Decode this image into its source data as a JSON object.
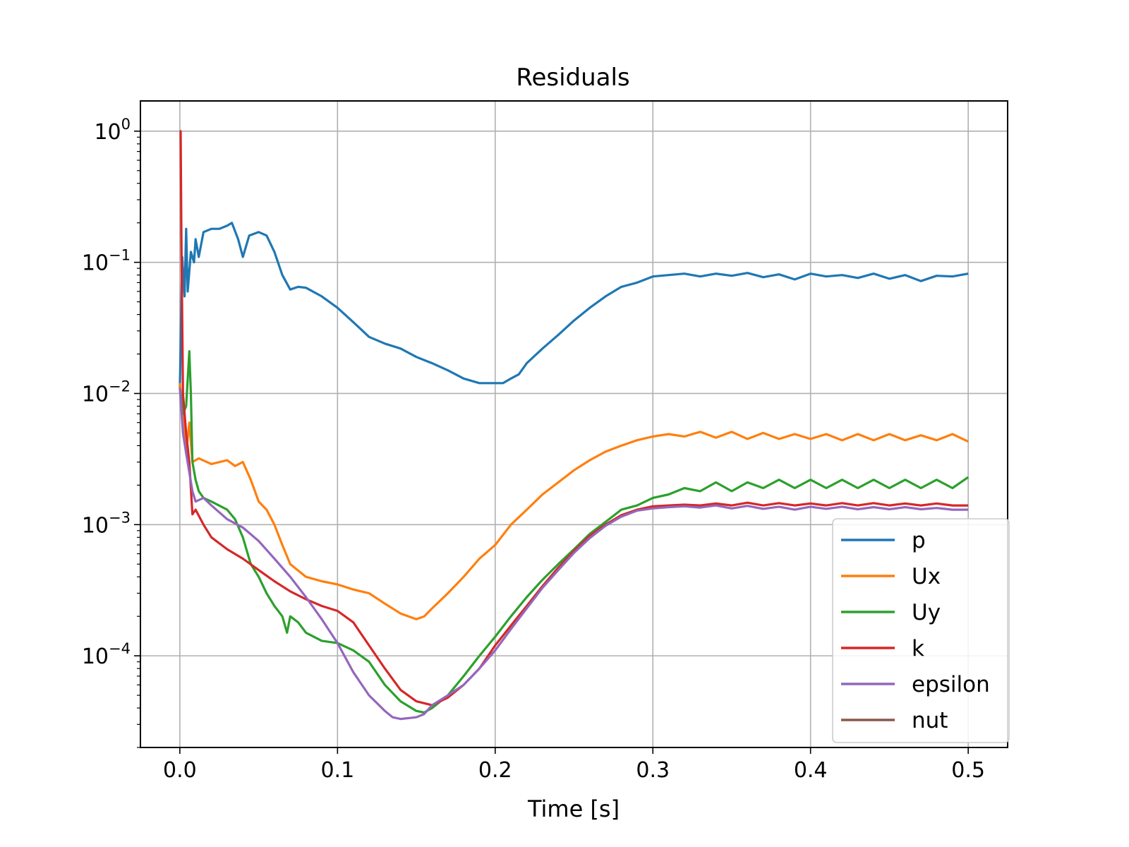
{
  "chart_data": {
    "type": "line",
    "title": "Residuals",
    "xlabel": "Time [s]",
    "ylabel": "",
    "y_scale": "log",
    "xlim": [
      -0.025,
      0.525
    ],
    "ylim": [
      2e-05,
      1.7
    ],
    "x_ticks": [
      0.0,
      0.1,
      0.2,
      0.3,
      0.4,
      0.5
    ],
    "x_tick_labels": [
      "0.0",
      "0.1",
      "0.2",
      "0.3",
      "0.4",
      "0.5"
    ],
    "y_ticks": [
      1,
      0.1,
      0.01,
      0.001,
      0.0001
    ],
    "y_tick_labels": [
      {
        "base": "10",
        "exp": "0"
      },
      {
        "base": "10",
        "exp": "−1"
      },
      {
        "base": "10",
        "exp": "−2"
      },
      {
        "base": "10",
        "exp": "−3"
      },
      {
        "base": "10",
        "exp": "−4"
      }
    ],
    "grid": true,
    "legend_position": "lower right",
    "series": [
      {
        "name": "p",
        "color": "#1f77b4",
        "x": [
          0.0,
          0.0015,
          0.003,
          0.004,
          0.005,
          0.007,
          0.009,
          0.01,
          0.012,
          0.015,
          0.02,
          0.025,
          0.03,
          0.033,
          0.037,
          0.04,
          0.044,
          0.05,
          0.055,
          0.06,
          0.065,
          0.07,
          0.075,
          0.08,
          0.09,
          0.1,
          0.11,
          0.12,
          0.13,
          0.14,
          0.15,
          0.16,
          0.17,
          0.18,
          0.19,
          0.2,
          0.205,
          0.21,
          0.215,
          0.22,
          0.23,
          0.24,
          0.25,
          0.26,
          0.27,
          0.28,
          0.29,
          0.3,
          0.31,
          0.32,
          0.33,
          0.34,
          0.35,
          0.36,
          0.37,
          0.38,
          0.39,
          0.4,
          0.41,
          0.42,
          0.43,
          0.44,
          0.45,
          0.46,
          0.47,
          0.48,
          0.49,
          0.5
        ],
        "y": [
          0.011,
          0.11,
          0.055,
          0.18,
          0.06,
          0.12,
          0.1,
          0.15,
          0.11,
          0.17,
          0.18,
          0.18,
          0.19,
          0.2,
          0.15,
          0.11,
          0.16,
          0.17,
          0.16,
          0.12,
          0.08,
          0.062,
          0.065,
          0.064,
          0.055,
          0.045,
          0.035,
          0.027,
          0.024,
          0.022,
          0.019,
          0.017,
          0.015,
          0.013,
          0.012,
          0.012,
          0.012,
          0.013,
          0.014,
          0.017,
          0.022,
          0.028,
          0.036,
          0.045,
          0.055,
          0.065,
          0.07,
          0.078,
          0.08,
          0.082,
          0.078,
          0.082,
          0.079,
          0.083,
          0.077,
          0.081,
          0.074,
          0.082,
          0.078,
          0.08,
          0.076,
          0.082,
          0.075,
          0.08,
          0.072,
          0.079,
          0.078,
          0.082
        ]
      },
      {
        "name": "Ux",
        "color": "#ff7f0e",
        "x": [
          0.0,
          0.002,
          0.004,
          0.006,
          0.008,
          0.012,
          0.02,
          0.03,
          0.035,
          0.04,
          0.045,
          0.05,
          0.055,
          0.06,
          0.065,
          0.07,
          0.08,
          0.09,
          0.1,
          0.11,
          0.12,
          0.13,
          0.14,
          0.15,
          0.155,
          0.16,
          0.17,
          0.18,
          0.19,
          0.2,
          0.21,
          0.22,
          0.23,
          0.24,
          0.25,
          0.26,
          0.27,
          0.28,
          0.29,
          0.3,
          0.31,
          0.32,
          0.33,
          0.34,
          0.35,
          0.36,
          0.37,
          0.38,
          0.39,
          0.4,
          0.41,
          0.42,
          0.43,
          0.44,
          0.45,
          0.46,
          0.47,
          0.48,
          0.49,
          0.5
        ],
        "y": [
          0.012,
          0.0065,
          0.0035,
          0.006,
          0.003,
          0.0032,
          0.0029,
          0.0031,
          0.0028,
          0.003,
          0.0022,
          0.0015,
          0.0013,
          0.001,
          0.0007,
          0.0005,
          0.0004,
          0.00037,
          0.00035,
          0.00032,
          0.0003,
          0.00025,
          0.00021,
          0.00019,
          0.0002,
          0.00023,
          0.0003,
          0.0004,
          0.00055,
          0.0007,
          0.001,
          0.0013,
          0.0017,
          0.0021,
          0.0026,
          0.0031,
          0.0036,
          0.004,
          0.0044,
          0.0047,
          0.0049,
          0.0047,
          0.0051,
          0.0046,
          0.0051,
          0.0045,
          0.005,
          0.0045,
          0.0049,
          0.0045,
          0.0049,
          0.0044,
          0.0049,
          0.0044,
          0.0049,
          0.0044,
          0.0048,
          0.0044,
          0.0049,
          0.0043
        ]
      },
      {
        "name": "Uy",
        "color": "#2ca02c",
        "x": [
          0.0,
          0.002,
          0.004,
          0.006,
          0.007,
          0.008,
          0.01,
          0.012,
          0.015,
          0.02,
          0.03,
          0.035,
          0.04,
          0.045,
          0.05,
          0.055,
          0.06,
          0.065,
          0.068,
          0.07,
          0.075,
          0.08,
          0.09,
          0.1,
          0.11,
          0.12,
          0.13,
          0.14,
          0.15,
          0.155,
          0.16,
          0.17,
          0.18,
          0.19,
          0.2,
          0.21,
          0.22,
          0.23,
          0.24,
          0.25,
          0.26,
          0.27,
          0.28,
          0.29,
          0.3,
          0.31,
          0.32,
          0.33,
          0.34,
          0.35,
          0.36,
          0.37,
          0.38,
          0.39,
          0.4,
          0.41,
          0.42,
          0.43,
          0.44,
          0.45,
          0.46,
          0.47,
          0.48,
          0.49,
          0.5
        ],
        "y": [
          0.011,
          0.007,
          0.008,
          0.021,
          0.01,
          0.003,
          0.0022,
          0.0018,
          0.0016,
          0.0015,
          0.0013,
          0.0011,
          0.0008,
          0.0005,
          0.0004,
          0.0003,
          0.00024,
          0.0002,
          0.00015,
          0.0002,
          0.00018,
          0.00015,
          0.00013,
          0.000125,
          0.00011,
          9e-05,
          6e-05,
          4.5e-05,
          3.8e-05,
          3.7e-05,
          4e-05,
          5e-05,
          7e-05,
          0.0001,
          0.00014,
          0.0002,
          0.00028,
          0.00038,
          0.0005,
          0.00065,
          0.00085,
          0.00105,
          0.0013,
          0.0014,
          0.0016,
          0.0017,
          0.0019,
          0.0018,
          0.0021,
          0.0018,
          0.0021,
          0.0019,
          0.0022,
          0.0019,
          0.0022,
          0.0019,
          0.0022,
          0.0019,
          0.0022,
          0.0019,
          0.0022,
          0.0019,
          0.0022,
          0.0019,
          0.0023
        ]
      },
      {
        "name": "k",
        "color": "#d62728",
        "x": [
          0.0,
          0.0005,
          0.001,
          0.002,
          0.004,
          0.006,
          0.008,
          0.01,
          0.015,
          0.02,
          0.03,
          0.04,
          0.05,
          0.06,
          0.07,
          0.08,
          0.09,
          0.1,
          0.11,
          0.12,
          0.13,
          0.14,
          0.15,
          0.16,
          0.17,
          0.18,
          0.19,
          0.2,
          0.21,
          0.22,
          0.23,
          0.24,
          0.25,
          0.26,
          0.27,
          0.28,
          0.29,
          0.3,
          0.31,
          0.32,
          0.33,
          0.34,
          0.35,
          0.36,
          0.37,
          0.38,
          0.39,
          0.4,
          0.41,
          0.42,
          0.43,
          0.44,
          0.45,
          0.46,
          0.47,
          0.48,
          0.49,
          0.5
        ],
        "y": [
          1.0,
          1.0,
          0.15,
          0.01,
          0.005,
          0.003,
          0.0012,
          0.0013,
          0.001,
          0.0008,
          0.00065,
          0.00055,
          0.00045,
          0.00037,
          0.00031,
          0.00027,
          0.00024,
          0.00022,
          0.00018,
          0.00012,
          8e-05,
          5.5e-05,
          4.5e-05,
          4.2e-05,
          4.8e-05,
          6e-05,
          8e-05,
          0.00012,
          0.00017,
          0.00024,
          0.00034,
          0.00047,
          0.00063,
          0.00082,
          0.001,
          0.00118,
          0.0013,
          0.00138,
          0.0014,
          0.00142,
          0.0014,
          0.00145,
          0.0014,
          0.00147,
          0.0014,
          0.00146,
          0.0014,
          0.00145,
          0.0014,
          0.00146,
          0.0014,
          0.00146,
          0.0014,
          0.00145,
          0.0014,
          0.00145,
          0.0014,
          0.0014
        ]
      },
      {
        "name": "epsilon",
        "color": "#9467bd",
        "x": [
          0.0,
          0.002,
          0.004,
          0.006,
          0.008,
          0.01,
          0.015,
          0.02,
          0.03,
          0.04,
          0.05,
          0.06,
          0.07,
          0.08,
          0.09,
          0.1,
          0.11,
          0.12,
          0.13,
          0.135,
          0.14,
          0.15,
          0.155,
          0.16,
          0.17,
          0.18,
          0.19,
          0.2,
          0.21,
          0.22,
          0.23,
          0.24,
          0.25,
          0.26,
          0.27,
          0.28,
          0.29,
          0.3,
          0.31,
          0.32,
          0.33,
          0.34,
          0.35,
          0.36,
          0.37,
          0.38,
          0.39,
          0.4,
          0.41,
          0.42,
          0.43,
          0.44,
          0.45,
          0.46,
          0.47,
          0.48,
          0.49,
          0.5
        ],
        "y": [
          0.011,
          0.005,
          0.0035,
          0.0025,
          0.0018,
          0.0015,
          0.0016,
          0.0014,
          0.0011,
          0.00095,
          0.00075,
          0.00055,
          0.0004,
          0.00028,
          0.00019,
          0.000125,
          7.5e-05,
          5e-05,
          3.8e-05,
          3.4e-05,
          3.3e-05,
          3.4e-05,
          3.6e-05,
          4.2e-05,
          5e-05,
          6e-05,
          8e-05,
          0.00011,
          0.00016,
          0.00023,
          0.00033,
          0.00045,
          0.00061,
          0.00079,
          0.00098,
          0.00115,
          0.00128,
          0.00133,
          0.00136,
          0.00138,
          0.00135,
          0.0014,
          0.00133,
          0.00139,
          0.00132,
          0.00137,
          0.0013,
          0.00137,
          0.00132,
          0.00137,
          0.00131,
          0.00136,
          0.00131,
          0.00136,
          0.00131,
          0.00134,
          0.0013,
          0.0013
        ]
      },
      {
        "name": "nut",
        "color": "#8c564b",
        "x": [],
        "y": []
      }
    ]
  }
}
